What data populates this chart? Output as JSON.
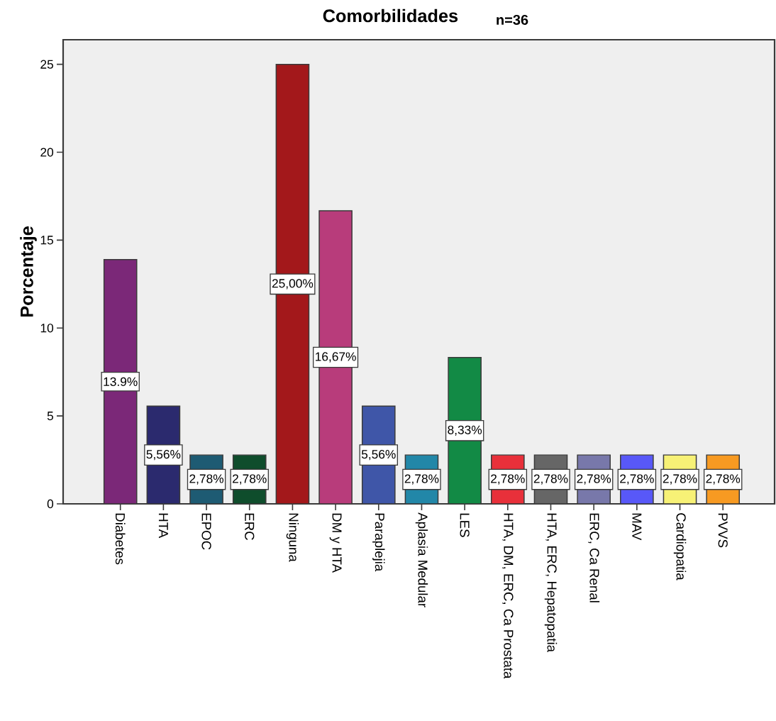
{
  "chart_data": {
    "type": "bar",
    "title": "Comorbilidades",
    "subtitle": "n=36",
    "ylabel": "Porcentaje",
    "categories": [
      "Diabetes",
      "HTA",
      "EPOC",
      "ERC",
      "Ninguna",
      "DM y HTA",
      "Paraplejia",
      "Aplasia Medular",
      "LES",
      "HTA, DM, ERC, Ca Prostata",
      "HTA, ERC, Hepatopatia",
      "ERC, Ca Renal",
      "MAV",
      "Cardiopatia",
      "PVVS"
    ],
    "values": [
      13.9,
      5.56,
      2.78,
      2.78,
      25.0,
      16.67,
      5.56,
      2.78,
      8.33,
      2.78,
      2.78,
      2.78,
      2.78,
      2.78,
      2.78
    ],
    "colors": [
      "#7b2878",
      "#2b2a6e",
      "#1e5b73",
      "#0f4d2c",
      "#a3181b",
      "#b83c7b",
      "#3f56a8",
      "#2287a8",
      "#128a45",
      "#e8303a",
      "#666666",
      "#7878aa",
      "#5858f8",
      "#f7f176",
      "#f79a22"
    ],
    "value_labels": [
      "13.9%",
      "5,56%",
      "2,78%",
      "2,78%",
      "25,00%",
      "16,67%",
      "5,56%",
      "2,78%",
      "8,33%",
      "2,78%",
      "2,78%",
      "2,78%",
      "2,78%",
      "2,78%",
      "2,78%"
    ],
    "ylim": [
      0,
      26.4
    ],
    "yticks": [
      0,
      5,
      10,
      15,
      20,
      25
    ]
  }
}
